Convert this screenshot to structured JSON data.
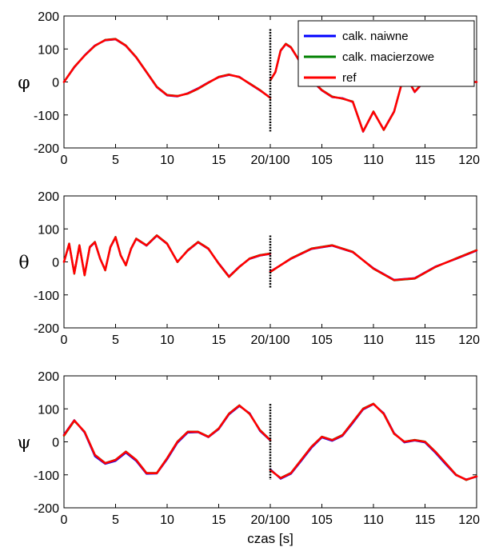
{
  "figure": {
    "xlabel": "czas [s]"
  },
  "legend": {
    "entries": [
      {
        "label": "calk. naiwne",
        "color": "#0000ff"
      },
      {
        "label": "calk. macierzowe",
        "color": "#008000"
      },
      {
        "label": "ref",
        "color": "#ff0000"
      }
    ],
    "placement": "top-right of first panel"
  },
  "chart_data": [
    {
      "type": "line",
      "ylabel": "φ",
      "ylim": [
        -200,
        200
      ],
      "yticks": [
        -200,
        -100,
        0,
        100,
        200
      ],
      "xticks": [
        "0",
        "5",
        "10",
        "15",
        "20/100",
        "105",
        "110",
        "115",
        "120"
      ],
      "x": [
        0,
        1,
        2,
        3,
        4,
        5,
        6,
        7,
        8,
        9,
        10,
        11,
        12,
        13,
        14,
        15,
        16,
        17,
        18,
        19,
        20,
        100,
        100.5,
        101,
        101.5,
        102,
        103,
        104,
        105,
        106,
        107,
        108,
        109,
        110,
        111,
        112,
        113,
        114,
        115,
        116,
        117,
        118,
        119,
        120
      ],
      "series": [
        {
          "name": "ref",
          "values": [
            0,
            45,
            80,
            110,
            127,
            130,
            110,
            75,
            30,
            -15,
            -40,
            -43,
            -35,
            -20,
            -2,
            15,
            22,
            15,
            -5,
            -25,
            -48,
            5,
            30,
            95,
            115,
            105,
            55,
            5,
            -25,
            -45,
            -50,
            -60,
            -150,
            -90,
            -145,
            -90,
            25,
            -30,
            5,
            0,
            0,
            0,
            0,
            0
          ]
        },
        {
          "name": "calk. naiwne",
          "values": [
            0,
            44,
            81,
            111,
            126,
            129,
            109,
            74,
            29,
            -16,
            -41,
            -44,
            -34,
            -19,
            -1,
            14,
            21,
            16,
            -6,
            -26,
            -47,
            6,
            29,
            94,
            114,
            104,
            54,
            4,
            -26,
            -46,
            -49,
            -61,
            -151,
            -91,
            -144,
            -89,
            24,
            -31,
            4,
            0,
            0,
            0,
            0,
            0
          ]
        },
        {
          "name": "calk. macierzowe",
          "values": [
            0,
            46,
            80,
            109,
            128,
            131,
            111,
            76,
            31,
            -14,
            -39,
            -42,
            -36,
            -21,
            -3,
            16,
            23,
            14,
            -4,
            -24,
            -49,
            4,
            31,
            96,
            116,
            106,
            56,
            6,
            -24,
            -44,
            -51,
            -59,
            -149,
            -89,
            -146,
            -91,
            26,
            -29,
            6,
            0,
            0,
            0,
            0,
            0
          ]
        }
      ],
      "markers": [
        {
          "x": 20,
          "ymin": -150,
          "ymax": 160
        }
      ]
    },
    {
      "type": "line",
      "ylabel": "θ",
      "ylim": [
        -200,
        200
      ],
      "yticks": [
        -200,
        -100,
        0,
        100,
        200
      ],
      "xticks": [
        "0",
        "5",
        "10",
        "15",
        "20/100",
        "105",
        "110",
        "115",
        "120"
      ],
      "x": [
        0,
        0.5,
        1,
        1.5,
        2,
        2.5,
        3,
        3.5,
        4,
        4.5,
        5,
        5.5,
        6,
        6.5,
        7,
        8,
        9,
        10,
        11,
        12,
        13,
        14,
        15,
        16,
        17,
        18,
        19,
        20,
        100,
        102,
        104,
        106,
        108,
        110,
        112,
        114,
        116,
        118,
        120
      ],
      "series": [
        {
          "name": "ref",
          "values": [
            0,
            55,
            -35,
            50,
            -40,
            45,
            60,
            10,
            -25,
            45,
            75,
            20,
            -10,
            40,
            70,
            50,
            80,
            55,
            0,
            35,
            60,
            40,
            -5,
            -45,
            -15,
            10,
            20,
            25,
            -30,
            10,
            40,
            50,
            30,
            -20,
            -55,
            -50,
            -15,
            10,
            35
          ]
        },
        {
          "name": "calk. naiwne",
          "values": [
            0,
            53,
            -34,
            49,
            -39,
            44,
            59,
            9,
            -24,
            44,
            74,
            19,
            -9,
            39,
            69,
            49,
            79,
            54,
            1,
            34,
            59,
            39,
            -4,
            -44,
            -14,
            9,
            19,
            24,
            -29,
            9,
            39,
            49,
            29,
            -19,
            -54,
            -49,
            -14,
            9,
            34
          ]
        },
        {
          "name": "calk. macierzowe",
          "values": [
            0,
            56,
            -36,
            51,
            -41,
            46,
            61,
            11,
            -26,
            46,
            76,
            21,
            -11,
            41,
            71,
            51,
            81,
            56,
            -1,
            36,
            61,
            41,
            -6,
            -46,
            -16,
            11,
            21,
            26,
            -31,
            11,
            41,
            51,
            31,
            -21,
            -56,
            -51,
            -16,
            11,
            36
          ]
        }
      ],
      "markers": [
        {
          "x": 20,
          "ymin": -80,
          "ymax": 80
        }
      ]
    },
    {
      "type": "line",
      "ylabel": "ψ",
      "ylim": [
        -200,
        200
      ],
      "yticks": [
        -200,
        -100,
        0,
        100,
        200
      ],
      "xticks": [
        "0",
        "5",
        "10",
        "15",
        "20/100",
        "105",
        "110",
        "115",
        "120"
      ],
      "x": [
        0,
        1,
        2,
        3,
        4,
        5,
        6,
        7,
        8,
        9,
        10,
        11,
        12,
        13,
        14,
        15,
        16,
        17,
        18,
        19,
        20,
        100,
        101,
        102,
        103,
        104,
        105,
        106,
        107,
        108,
        109,
        110,
        111,
        112,
        113,
        114,
        115,
        116,
        117,
        118,
        119,
        120
      ],
      "series": [
        {
          "name": "ref",
          "values": [
            20,
            65,
            30,
            -40,
            -65,
            -55,
            -30,
            -55,
            -95,
            -95,
            -50,
            0,
            30,
            30,
            15,
            40,
            85,
            110,
            85,
            35,
            5,
            -85,
            -110,
            -95,
            -55,
            -15,
            15,
            5,
            20,
            60,
            100,
            115,
            85,
            25,
            0,
            5,
            0,
            -30,
            -65,
            -100,
            -115,
            -105
          ]
        },
        {
          "name": "calk. naiwne",
          "values": [
            22,
            66,
            28,
            -44,
            -67,
            -58,
            -33,
            -58,
            -97,
            -96,
            -53,
            -3,
            28,
            29,
            14,
            38,
            83,
            108,
            87,
            33,
            4,
            -83,
            -112,
            -97,
            -58,
            -18,
            13,
            3,
            18,
            57,
            98,
            114,
            87,
            27,
            -2,
            4,
            -2,
            -33,
            -68,
            -101,
            -114,
            -106
          ]
        },
        {
          "name": "calk. macierzowe",
          "values": [
            18,
            63,
            31,
            -39,
            -64,
            -54,
            -29,
            -54,
            -94,
            -94,
            -49,
            1,
            31,
            31,
            16,
            41,
            86,
            111,
            84,
            36,
            6,
            -86,
            -109,
            -94,
            -54,
            -14,
            16,
            6,
            21,
            61,
            101,
            116,
            84,
            24,
            1,
            6,
            1,
            -29,
            -64,
            -99,
            -116,
            -104
          ]
        }
      ],
      "markers": [
        {
          "x": 20,
          "ymin": -115,
          "ymax": 115
        }
      ]
    }
  ]
}
